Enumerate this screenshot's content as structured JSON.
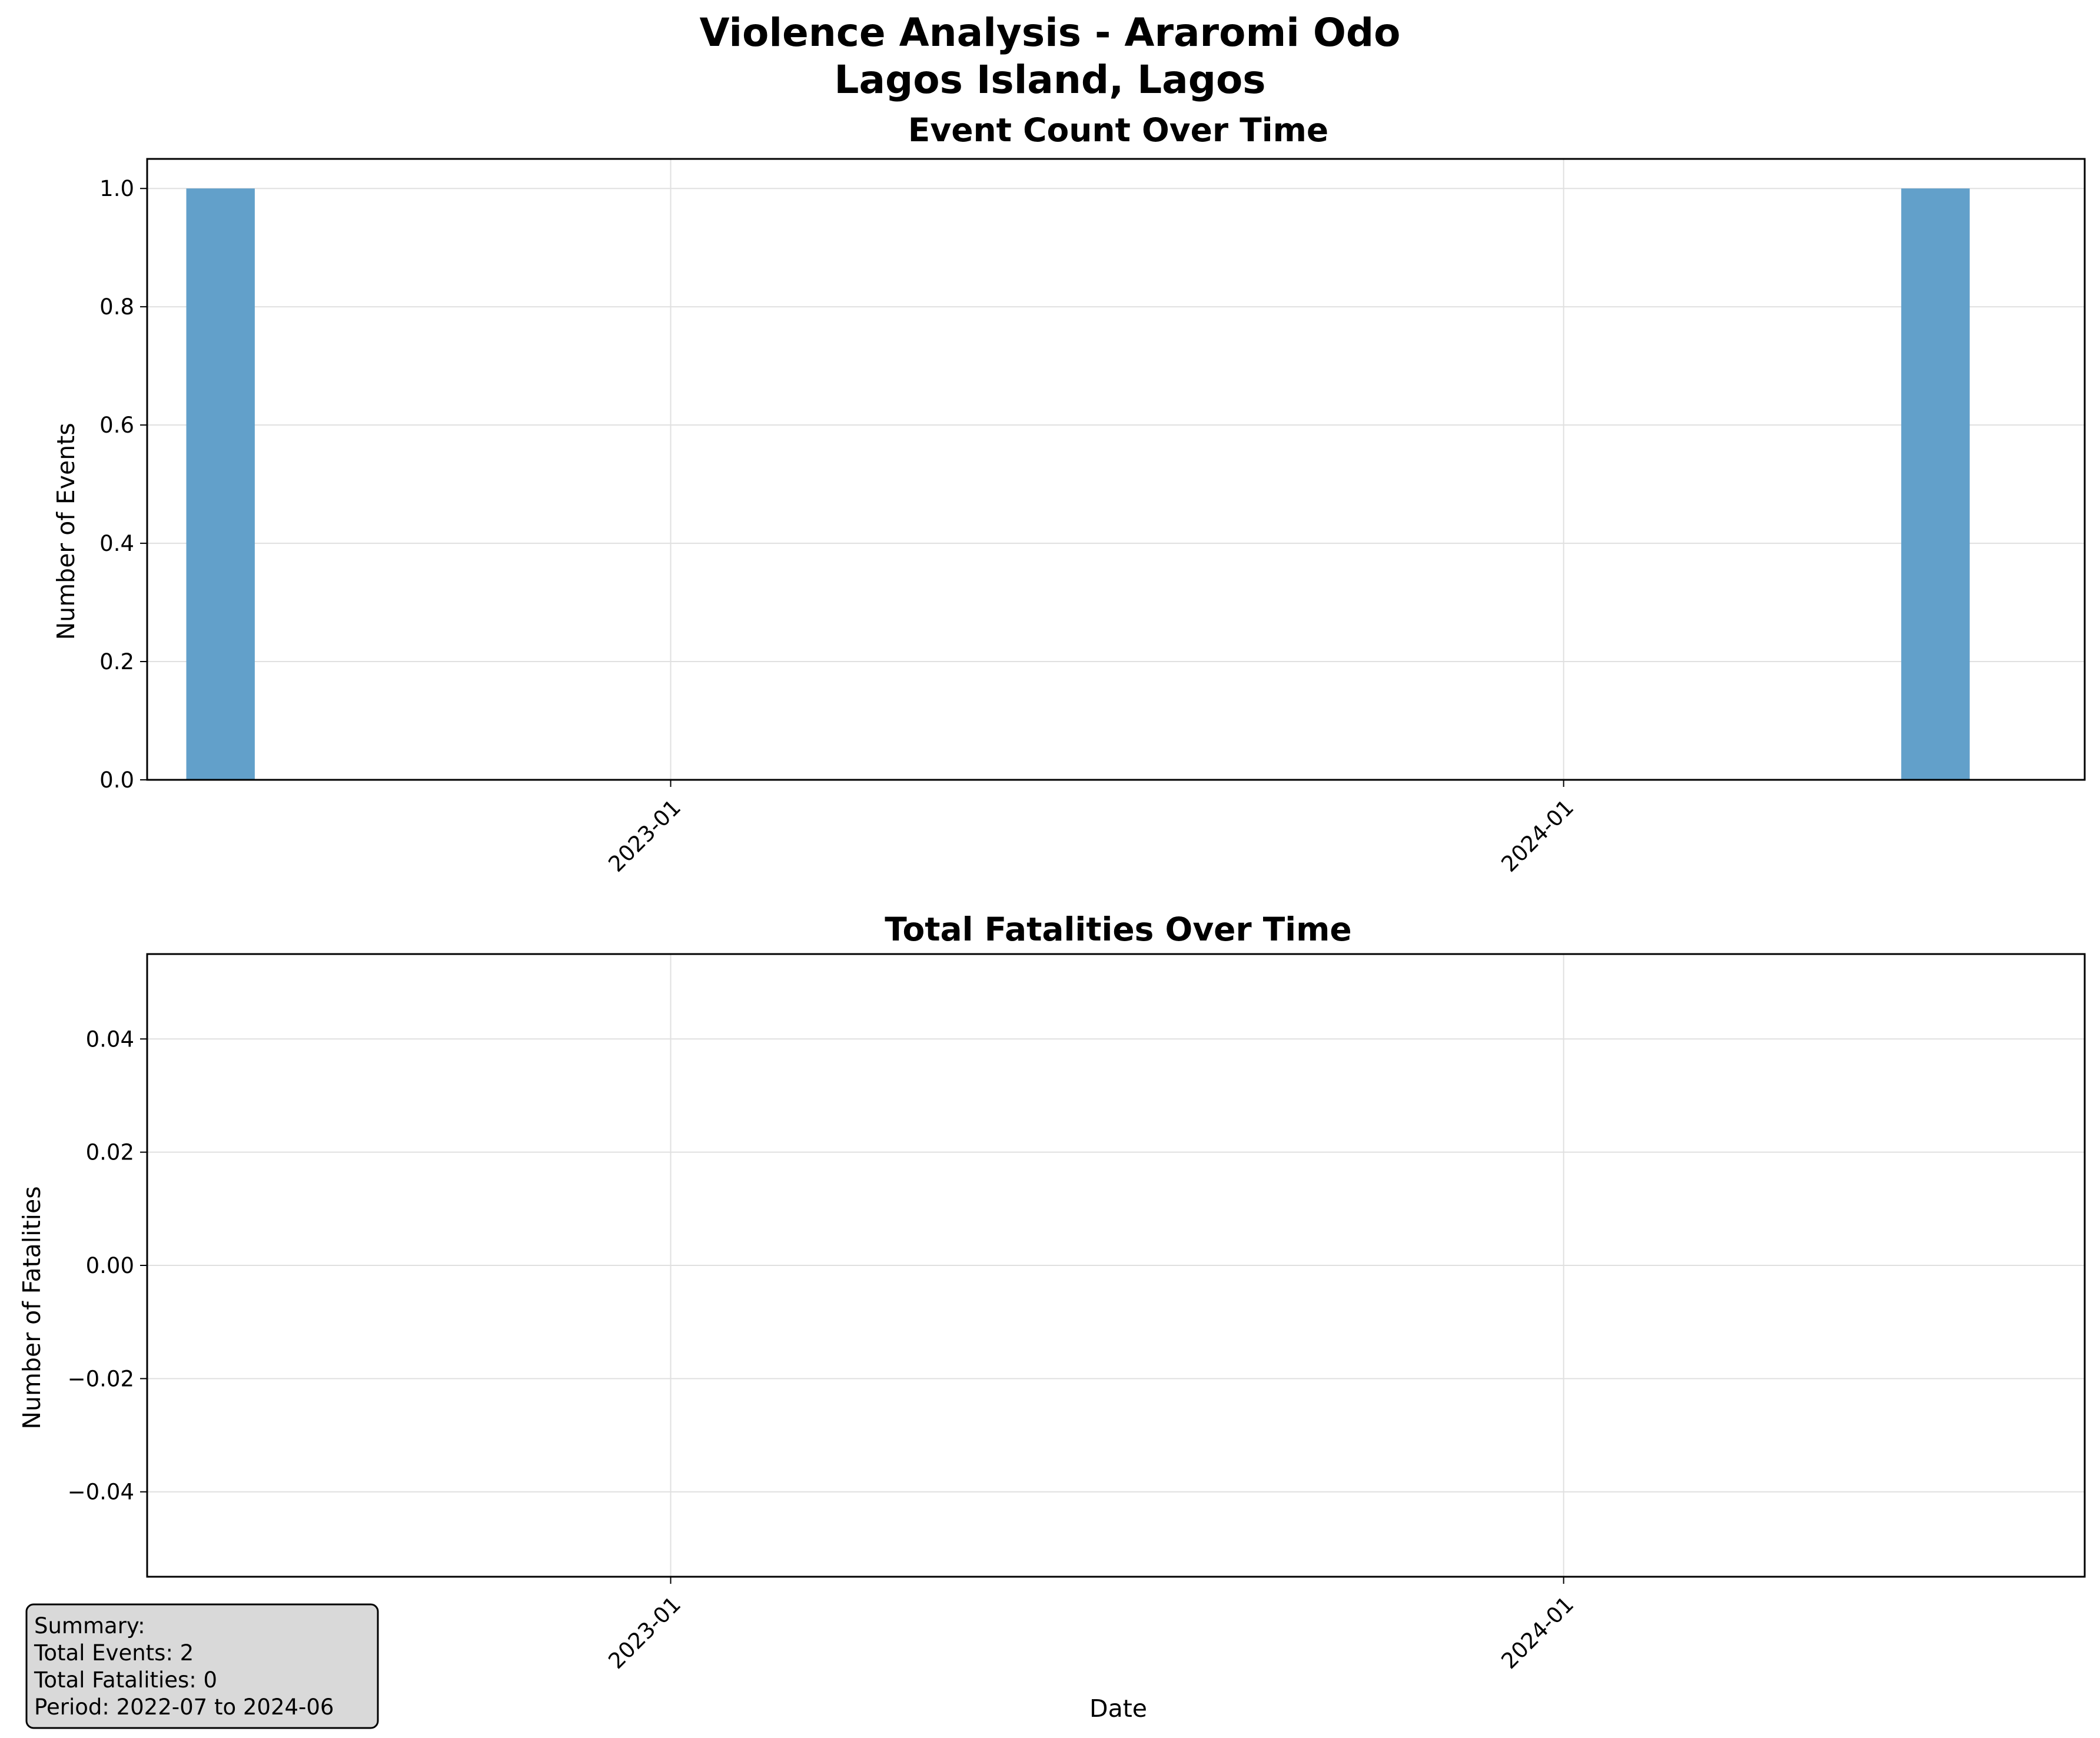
{
  "figure": {
    "title_line1": "Violence Analysis - Araromi Odo",
    "title_line2": "Lagos Island, Lagos"
  },
  "chart_data": [
    {
      "type": "bar",
      "title": "Event Count Over Time",
      "xlabel": "",
      "ylabel": "Number of Events",
      "x_axis": "date",
      "xlim": [
        "2022-06-01",
        "2024-08-01"
      ],
      "ylim": [
        0,
        1.05
      ],
      "xticks": [
        "2023-01",
        "2024-01"
      ],
      "yticks": [
        0.0,
        0.2,
        0.4,
        0.6,
        0.8,
        1.0
      ],
      "ytick_labels": [
        "0.0",
        "0.2",
        "0.4",
        "0.6",
        "0.8",
        "1.0"
      ],
      "grid": true,
      "color": "#62a0ca",
      "x": [
        "2022-07",
        "2024-06"
      ],
      "values": [
        1,
        1
      ]
    },
    {
      "type": "line",
      "title": "Total Fatalities Over Time",
      "xlabel": "Date",
      "ylabel": "Number of Fatalities",
      "x_axis": "date",
      "xlim": [
        "2022-06-01",
        "2024-08-01"
      ],
      "ylim": [
        -0.055,
        0.055
      ],
      "xticks": [
        "2023-01",
        "2024-01"
      ],
      "yticks": [
        -0.04,
        -0.02,
        0.0,
        0.02,
        0.04
      ],
      "ytick_labels": [
        "−0.04",
        "−0.02",
        "0.00",
        "0.02",
        "0.04"
      ],
      "grid": true,
      "color": "#d62728",
      "x": [],
      "values": []
    }
  ],
  "summary": {
    "heading": "Summary:",
    "total_events": "Total Events: 2",
    "total_fatalities": "Total Fatalities: 0",
    "period": "Period: 2022-07 to 2024-06"
  }
}
